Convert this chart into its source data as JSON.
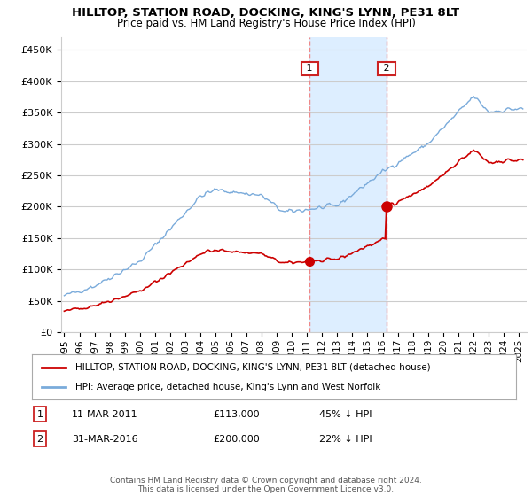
{
  "title": "HILLTOP, STATION ROAD, DOCKING, KING'S LYNN, PE31 8LT",
  "subtitle": "Price paid vs. HM Land Registry's House Price Index (HPI)",
  "ylabel_ticks": [
    "£0",
    "£50K",
    "£100K",
    "£150K",
    "£200K",
    "£250K",
    "£300K",
    "£350K",
    "£400K",
    "£450K"
  ],
  "ytick_values": [
    0,
    50000,
    100000,
    150000,
    200000,
    250000,
    300000,
    350000,
    400000,
    450000
  ],
  "ylim": [
    0,
    470000
  ],
  "xlim_start": 1994.8,
  "xlim_end": 2025.5,
  "sale1_x": 2011.19,
  "sale1_y": 113000,
  "sale1_label": "1",
  "sale2_x": 2016.25,
  "sale2_y": 200000,
  "sale2_label": "2",
  "red_line_color": "#cc0000",
  "blue_line_color": "#7aabdb",
  "highlight_fill": "#ddeeff",
  "vline_color": "#ee8888",
  "grid_color": "#cccccc",
  "legend_text1": "HILLTOP, STATION ROAD, DOCKING, KING'S LYNN, PE31 8LT (detached house)",
  "legend_text2": "HPI: Average price, detached house, King's Lynn and West Norfolk",
  "annotation1_date": "11-MAR-2011",
  "annotation1_price": "£113,000",
  "annotation1_hpi": "45% ↓ HPI",
  "annotation2_date": "31-MAR-2016",
  "annotation2_price": "£200,000",
  "annotation2_hpi": "22% ↓ HPI",
  "footnote": "Contains HM Land Registry data © Crown copyright and database right 2024.\nThis data is licensed under the Open Government Licence v3.0.",
  "background_color": "#ffffff"
}
